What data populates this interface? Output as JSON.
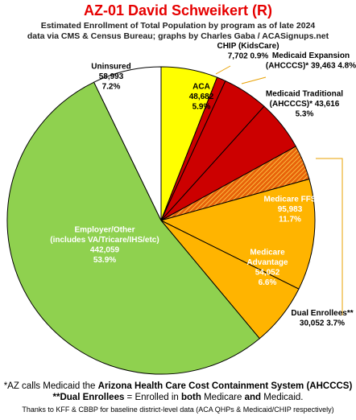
{
  "header": {
    "title": "AZ-01 David Schweikert (R)",
    "subtitle_line1": "Estimated Enrollment of Total Population by program as of late 2024",
    "subtitle_line2": "data via CMS & Census Bureau; graphs by Charles Gaba / ACASignups.net"
  },
  "footnotes": {
    "fn1_prefix": "*AZ calls Medicaid the ",
    "fn1_bold": "Arizona Health Care Cost Containment System (AHCCCS)",
    "fn2_bold_a": "**Dual Enrollees",
    "fn2_mid": " = Enrolled in ",
    "fn2_bold_b": "both",
    "fn2_mid2": " Medicare ",
    "fn2_bold_c": "and",
    "fn2_end": " Medicaid.",
    "fn3": "Thanks to KFF & CBBP for baseline district-level data (ACA QHPs & Medicaid/CHIP respectively)"
  },
  "chart_data": {
    "type": "pie",
    "start_angle_deg": 0,
    "direction": "clockwise",
    "slices": [
      {
        "name": "ACA",
        "value": 48682,
        "percent": "5.9%",
        "color": "#ffff00",
        "label_lines": [
          "ACA",
          "48,682",
          "5.9%"
        ],
        "label_position": "inside"
      },
      {
        "name": "CHIP (KidsCare)",
        "value": 7702,
        "percent": "0.9%",
        "color": "#cc0000",
        "label_lines": [
          "CHIP (KidsCare)",
          "7,702 0.9%"
        ],
        "label_position": "outside"
      },
      {
        "name": "Medicaid Expansion (AHCCCS)*",
        "value": 39463,
        "percent": "4.8%",
        "color": "#cc0000",
        "label_lines": [
          "Medicaid Expansion",
          "(AHCCCS)* 39,463 4.8%"
        ],
        "label_position": "outside"
      },
      {
        "name": "Medicaid Traditional (AHCCCS)*",
        "value": 43616,
        "percent": "5.3%",
        "color": "#cc0000",
        "label_lines": [
          "Medicaid Traditional",
          "(AHCCCS)* 43,616",
          "5.3%"
        ],
        "label_position": "outside"
      },
      {
        "name": "Dual Enrollees**",
        "value": 30052,
        "percent": "3.7%",
        "color": "#e8620a",
        "hatched": true,
        "label_lines": [
          "Dual Enrollees**",
          "30,052 3.7%"
        ],
        "label_position": "outside"
      },
      {
        "name": "Medicare FFS",
        "value": 95983,
        "percent": "11.7%",
        "color": "#ffb400",
        "label_lines": [
          "Medicare FFS",
          "95,983",
          "11.7%"
        ],
        "label_position": "inside"
      },
      {
        "name": "Medicare Advantage",
        "value": 54052,
        "percent": "6.6%",
        "color": "#ffb400",
        "label_lines": [
          "Medicare",
          "Advantage",
          "54,052",
          "6.6%"
        ],
        "label_position": "inside"
      },
      {
        "name": "Employer/Other (includes VA/Tricare/IHS/etc)",
        "value": 442059,
        "percent": "53.9%",
        "color": "#8fd14f",
        "label_lines": [
          "Employer/Other",
          "(includes VA/Tricare/IHS/etc)",
          "442,059",
          "53.9%"
        ],
        "label_position": "inside"
      },
      {
        "name": "Uninsured",
        "value": 58993,
        "percent": "7.2%",
        "color": "#ffffff",
        "label_lines": [
          "Uninsured",
          "58,993",
          "7.2%"
        ],
        "label_position": "inside"
      }
    ]
  }
}
